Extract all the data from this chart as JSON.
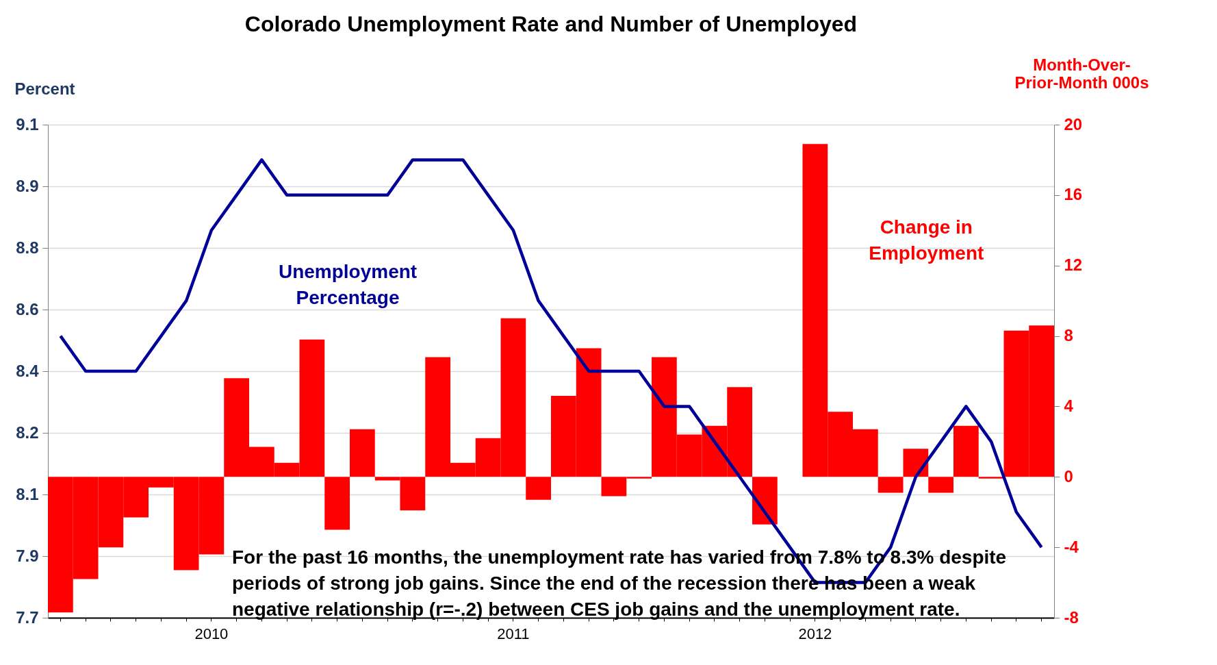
{
  "chart_data": {
    "type": "bar",
    "title": "Colorado Unemployment Rate and Number of Unemployed",
    "ylabel": "Percent",
    "y2label": "Month-Over-Prior-Month 000s",
    "categories": [
      null,
      null,
      null,
      null,
      null,
      null,
      "2010",
      null,
      null,
      null,
      null,
      null,
      null,
      null,
      null,
      null,
      null,
      null,
      "2011",
      null,
      null,
      null,
      null,
      null,
      null,
      null,
      null,
      null,
      null,
      null,
      "2012",
      null,
      null,
      null,
      null,
      null,
      null,
      null,
      null,
      null
    ],
    "series": [
      {
        "axis": "y2",
        "color": "#ff0000",
        "values": [
          -7.7,
          -5.8,
          -4.0,
          -2.3,
          -0.6,
          -5.3,
          -4.4,
          5.6,
          1.7,
          0.8,
          7.8,
          -3.0,
          2.7,
          -0.2,
          -1.9,
          6.8,
          0.8,
          2.2,
          9.0,
          -1.3,
          4.6,
          7.3,
          -1.1,
          -0.1,
          6.8,
          2.4,
          2.9,
          5.1,
          -2.7,
          null,
          18.9,
          3.7,
          2.7,
          -0.9,
          1.6,
          -0.9,
          2.9,
          -0.1,
          8.3,
          8.6
        ]
      },
      {
        "type": "line",
        "axis": "y",
        "color": "#000099",
        "values": [
          8.5,
          8.4,
          8.4,
          8.4,
          8.5,
          8.6,
          8.8,
          8.9,
          9.0,
          8.9,
          8.9,
          8.9,
          8.9,
          8.9,
          9.0,
          9.0,
          9.0,
          8.9,
          8.8,
          8.6,
          8.5,
          8.4,
          8.4,
          8.4,
          8.3,
          8.3,
          8.2,
          8.1,
          8.0,
          7.9,
          7.8,
          7.8,
          7.8,
          7.9,
          8.1,
          8.2,
          8.3,
          8.2,
          8.0,
          7.9
        ]
      }
    ],
    "ylim": [
      7.7,
      9.1
    ],
    "yticks": [
      7.7,
      {
        "value": 7.875,
        "label": "7.9"
      },
      {
        "value": 8.05,
        "label": "8.1"
      },
      {
        "value": 8.225,
        "label": "8.2"
      },
      8.4,
      {
        "value": 8.575,
        "label": "8.6"
      },
      {
        "value": 8.75,
        "label": "8.8"
      },
      {
        "value": 8.925,
        "label": "8.9"
      },
      9.1
    ],
    "y2lim": [
      -8,
      20
    ],
    "y2ticks": [
      -8,
      -4,
      0,
      4,
      8,
      12,
      16,
      20
    ],
    "grid": "y",
    "line_style": "solid",
    "marker": "none",
    "annotations": [
      "Unemployment Percentage",
      "Change in Employment",
      "For the past  16 months, the unemployment rate has varied from 7.8% to 8.3% despite periods of strong job gains. Since the end of the recession there has been a weak negative relationship (r=-.2) between CES job gains and the unemployment rate."
    ]
  }
}
